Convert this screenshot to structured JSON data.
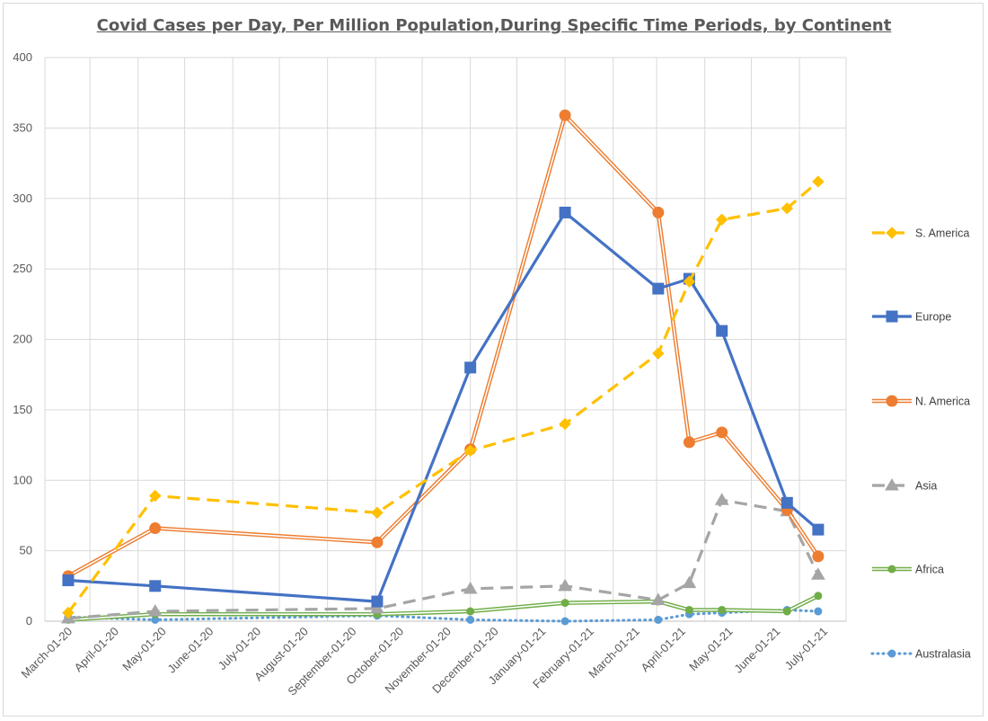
{
  "chart_data": {
    "type": "line",
    "title": "Covid Cases per Day, Per Million Population,During Specific Time Periods, by Continent",
    "xlabel": "",
    "ylabel": "",
    "ylim": [
      0,
      400
    ],
    "yticks": [
      "0",
      "50",
      "100",
      "150",
      "200",
      "250",
      "300",
      "350",
      "400"
    ],
    "xtick_labels": [
      "March-01-20",
      "April-01-20",
      "May-01-20",
      "June-01-20",
      "July-01-20",
      "August-01-20",
      "September-01-20",
      "October-01-20",
      "November-01-20",
      "December-01-20",
      "January-01-21",
      "February-01-21",
      "March-01-21",
      "April-01-21",
      "May-01-21",
      "June-01-21",
      "July-01-21"
    ],
    "x": [
      "2020-03-01",
      "2020-04-26",
      "2020-09-16",
      "2020-11-15",
      "2021-01-15",
      "2021-03-16",
      "2021-04-05",
      "2021-04-26",
      "2021-06-07",
      "2021-06-27"
    ],
    "grid": true,
    "legend_position": "right",
    "series": [
      {
        "name": "S. America",
        "color": "#FFC000",
        "style": "dash",
        "marker": "diamond",
        "values": [
          6,
          89,
          77,
          121,
          140,
          190,
          241,
          285,
          293,
          312
        ]
      },
      {
        "name": "Europe",
        "color": "#4472C4",
        "style": "solid",
        "marker": "square",
        "values": [
          29,
          25,
          14,
          180,
          290,
          236,
          243,
          206,
          84,
          65
        ]
      },
      {
        "name": "N. America",
        "color": "#ED7D31",
        "style": "double",
        "marker": "circle",
        "values": [
          32,
          66,
          56,
          122,
          359,
          290,
          127,
          134,
          79,
          46
        ]
      },
      {
        "name": "Asia",
        "color": "#A5A5A5",
        "style": "dash",
        "marker": "triangle",
        "values": [
          2,
          7,
          9,
          23,
          25,
          15,
          27,
          86,
          78,
          33
        ]
      },
      {
        "name": "Africa",
        "color": "#70AD47",
        "style": "double",
        "marker": "circle-small",
        "values": [
          1,
          5,
          5,
          7,
          13,
          14,
          8,
          8,
          7,
          18
        ]
      },
      {
        "name": "Australasia",
        "color": "#5B9BD5",
        "style": "dot",
        "marker": "circle-small",
        "values": [
          3,
          1,
          4,
          1,
          0,
          1,
          5,
          6,
          8,
          7
        ]
      }
    ]
  }
}
